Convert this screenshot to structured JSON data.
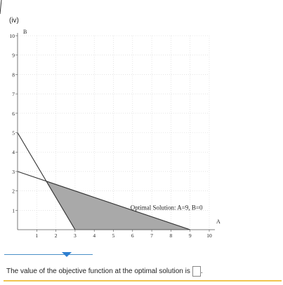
{
  "top_ticks": [
    "1",
    "2",
    "3",
    "4",
    "5",
    "6",
    "7",
    "8",
    "9",
    "10"
  ],
  "part_label": "(iv)",
  "chart_data": {
    "type": "area",
    "title": "",
    "xlabel": "A",
    "ylabel": "B",
    "xlim": [
      0,
      10
    ],
    "ylim": [
      0,
      10
    ],
    "x_ticks": [
      "1",
      "2",
      "3",
      "4",
      "5",
      "6",
      "7",
      "8",
      "9",
      "10"
    ],
    "y_ticks": [
      "1",
      "2",
      "3",
      "4",
      "5",
      "6",
      "7",
      "8",
      "9",
      "10"
    ],
    "lines": [
      {
        "points": [
          [
            0,
            5
          ],
          [
            3,
            0
          ]
        ]
      },
      {
        "points": [
          [
            0,
            3
          ],
          [
            9,
            0
          ]
        ]
      }
    ],
    "feasible_region": [
      [
        3,
        0
      ],
      [
        9,
        0
      ],
      [
        1.5,
        2.5
      ]
    ],
    "region_color": "#a9a9a9",
    "annotation": {
      "text": "Optimal Solution: A=9, B=0",
      "x": 6,
      "y": 1.1
    }
  },
  "question": {
    "text": "The value of the objective function at the optimal solution is",
    "answer_value": "",
    "period": "."
  }
}
